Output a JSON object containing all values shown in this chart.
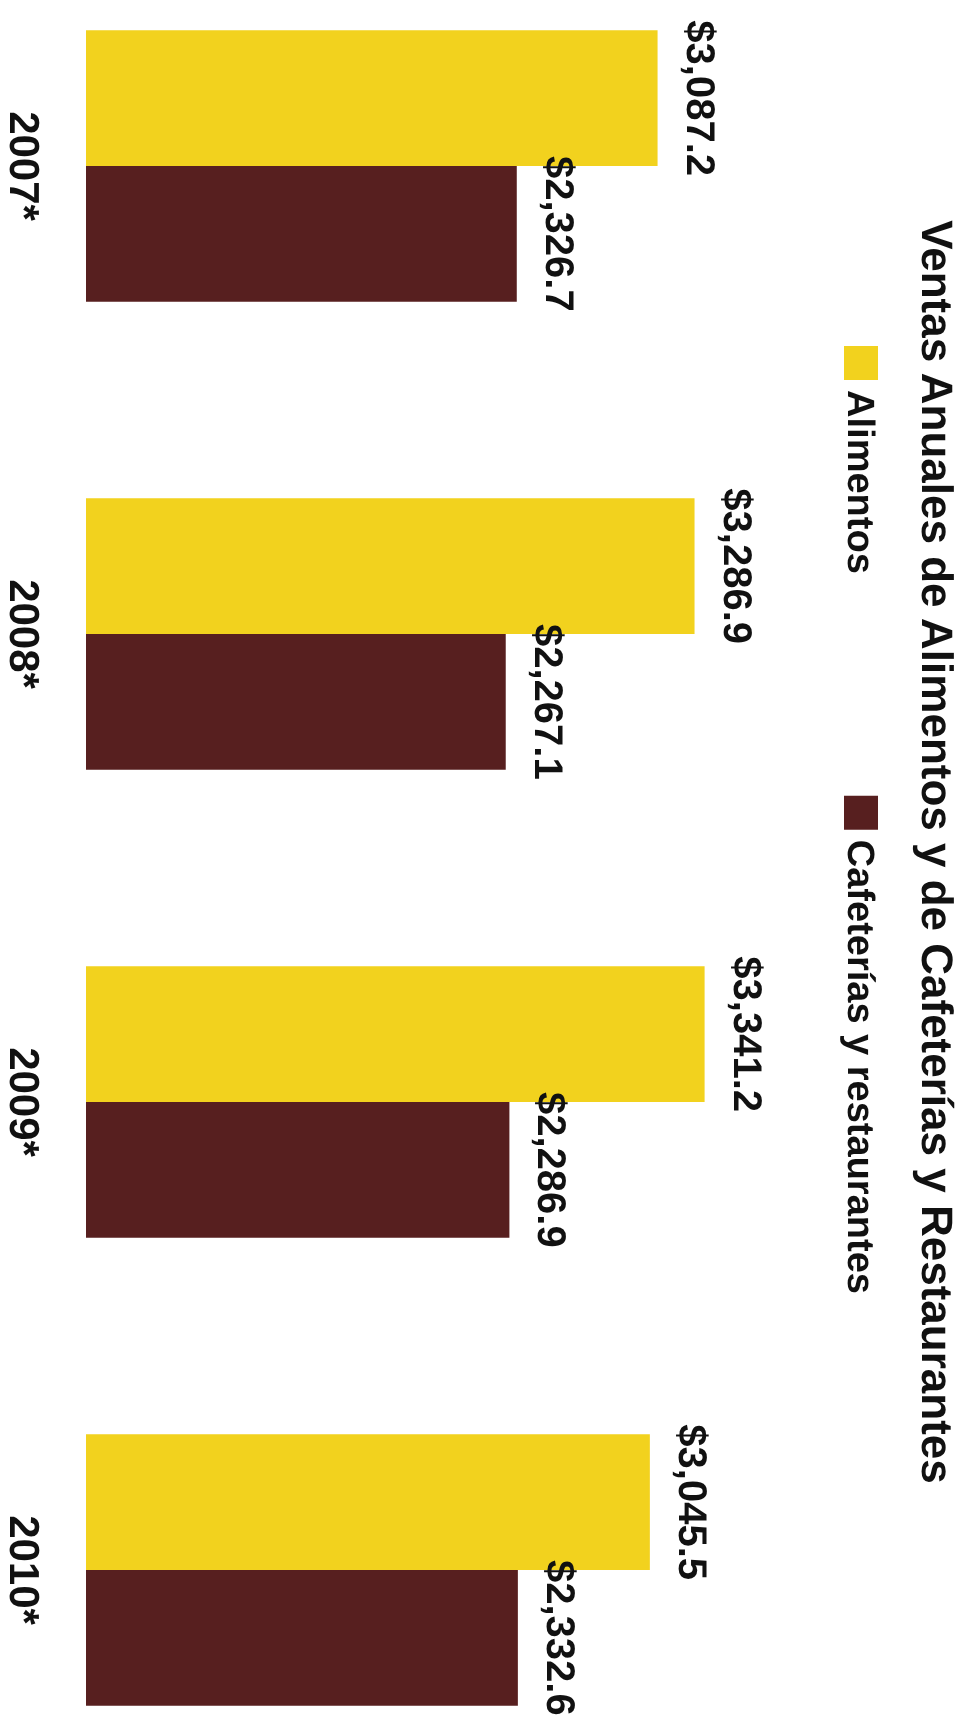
{
  "chart_data": {
    "type": "bar",
    "orientation": "horizontal",
    "title": "Ventas Anuales de Alimentos y de Cafeterías y Restaurantes",
    "categories": [
      "2007*",
      "2008*",
      "2009*",
      "2010*"
    ],
    "series": [
      {
        "name": "Alimentos",
        "color": "#f2d21e",
        "values": [
          3087.2,
          3286.9,
          3341.2,
          3045.5
        ],
        "value_labels": [
          "$3,087.2",
          "$3,286.9",
          "$3,341.2",
          "$3,045.5"
        ]
      },
      {
        "name": "Cafeterías y restaurantes",
        "color": "#571f1f",
        "values": [
          2326.7,
          2267.1,
          2286.9,
          2332.6
        ],
        "value_labels": [
          "$2,326.7",
          "$2,267.1",
          "$2,286.9",
          "$2,332.6"
        ]
      }
    ],
    "tick_labels": "y",
    "legend": "right"
  }
}
